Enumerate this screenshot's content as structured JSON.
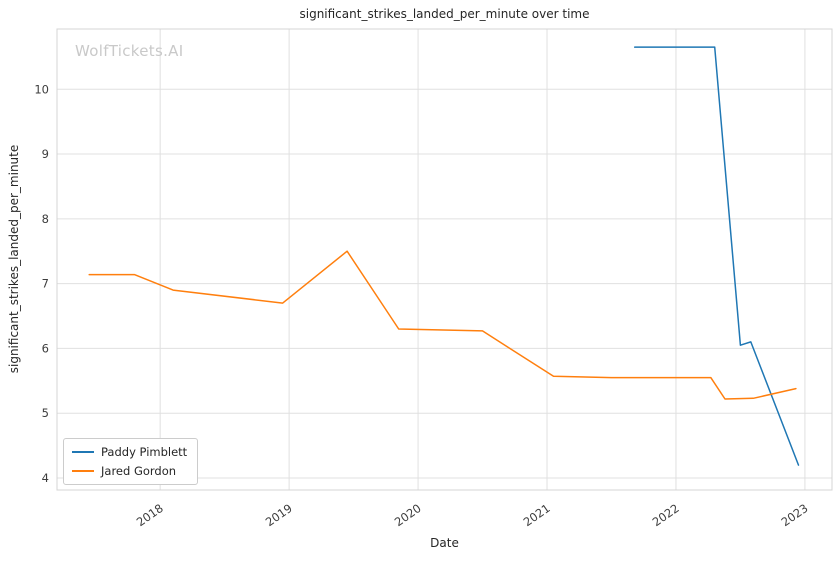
{
  "chart_data": {
    "type": "line",
    "title": "significant_strikes_landed_per_minute over time",
    "xlabel": "Date",
    "ylabel": "significant_strikes_landed_per_minute",
    "watermark": "WolfTickets.AI",
    "xlim": [
      2017.2,
      2023.21
    ],
    "ylim": [
      3.815,
      10.93
    ],
    "xticks": {
      "values": [
        2018,
        2019,
        2020,
        2021,
        2022,
        2023
      ],
      "labels": [
        "2018",
        "2019",
        "2020",
        "2021",
        "2022",
        "2023"
      ]
    },
    "yticks": {
      "values": [
        4,
        5,
        6,
        7,
        8,
        9,
        10
      ],
      "labels": [
        "4",
        "5",
        "6",
        "7",
        "8",
        "9",
        "10"
      ]
    },
    "grid": true,
    "legend": {
      "position": "lower left"
    },
    "series": [
      {
        "name": "Paddy Pimblett",
        "color": "#1f77b4",
        "x": [
          2021.68,
          2022.3,
          2022.5,
          2022.58,
          2022.95
        ],
        "y": [
          10.65,
          10.65,
          6.05,
          6.1,
          4.2
        ]
      },
      {
        "name": "Jared Gordon",
        "color": "#ff7f0e",
        "x": [
          2017.45,
          2017.8,
          2018.1,
          2018.95,
          2019.45,
          2019.85,
          2020.5,
          2021.05,
          2021.5,
          2022.27,
          2022.38,
          2022.6,
          2022.93
        ],
        "y": [
          7.14,
          7.14,
          6.9,
          6.7,
          7.5,
          6.3,
          6.27,
          5.57,
          5.55,
          5.55,
          5.22,
          5.23,
          5.38
        ]
      }
    ]
  },
  "colors": {
    "grid": "#e0e0e0",
    "spine": "#d4d4d4",
    "tick_text": "#3d3d3d",
    "text": "#262626",
    "watermark": "#c9c9c9",
    "background": "#ffffff"
  }
}
